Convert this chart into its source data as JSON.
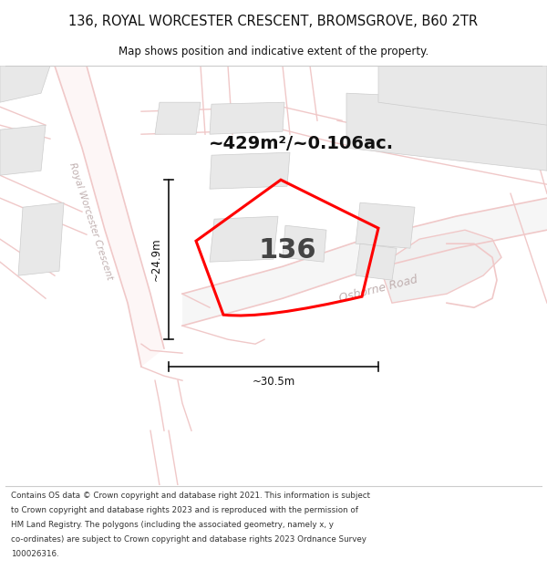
{
  "title": "136, ROYAL WORCESTER CRESCENT, BROMSGROVE, B60 2TR",
  "subtitle": "Map shows position and indicative extent of the property.",
  "area_label": "~429m²/~0.106ac.",
  "number_label": "136",
  "dim_height": "~24.9m",
  "dim_width": "~30.5m",
  "road_label_1": "Royal Worcester Crescent",
  "road_label_2": "Osborne Road",
  "footer": "Contains OS data © Crown copyright and database right 2021. This information is subject to Crown copyright and database rights 2023 and is reproduced with the permission of HM Land Registry. The polygons (including the associated geometry, namely x, y co-ordinates) are subject to Crown copyright and database rights 2023 Ordnance Survey 100026316.",
  "bg_color": "#ffffff",
  "map_bg": "#f8f8f8",
  "road_color": "#f0c8c8",
  "road_fill": "#fdf0f0",
  "plot_outline_color": "#ff0000",
  "building_color": "#e8e8e8",
  "building_edge": "#cccccc",
  "dim_line_color": "#111111",
  "text_color": "#111111",
  "road_text_color": "#c0b0b0"
}
